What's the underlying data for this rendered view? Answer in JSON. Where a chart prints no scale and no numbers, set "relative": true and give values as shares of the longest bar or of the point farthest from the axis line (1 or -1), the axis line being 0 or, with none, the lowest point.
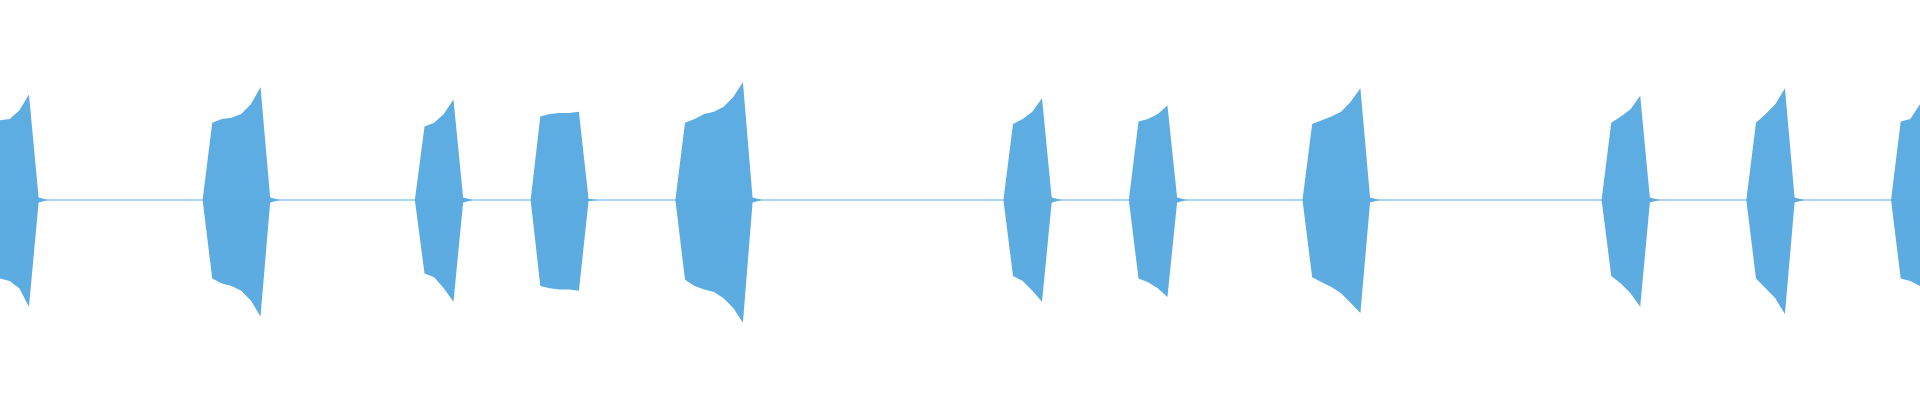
{
  "chart_data": {
    "type": "area",
    "relative": true,
    "legend": false,
    "ref_lines": [
      {
        "axis": "y",
        "value": 0,
        "color": "#5dace2"
      }
    ],
    "categories": [
      null,
      null,
      null,
      null,
      null,
      null,
      null,
      null,
      null,
      null,
      null,
      null,
      null,
      null,
      null,
      null,
      null,
      null,
      null,
      null,
      null,
      null,
      null,
      null,
      null,
      null,
      null,
      null,
      null,
      null,
      null,
      null,
      null,
      null,
      null,
      null,
      null,
      null,
      null,
      null,
      null,
      null,
      null,
      null,
      null,
      null,
      null,
      null,
      null,
      null,
      null,
      null,
      null,
      null,
      null,
      null,
      null,
      null,
      null,
      null,
      null,
      null,
      null,
      null,
      null,
      null,
      null,
      null,
      null,
      null,
      null,
      null,
      null,
      null,
      null,
      null,
      null,
      null,
      null,
      null,
      null,
      null,
      null,
      null,
      null,
      null,
      null,
      null,
      null,
      null,
      null,
      null,
      null,
      null,
      null,
      null,
      null,
      null,
      null,
      null,
      null,
      null,
      null,
      null,
      null,
      null,
      null,
      null,
      null,
      null,
      null,
      null,
      null,
      null,
      null,
      null,
      null,
      null,
      null,
      null,
      null,
      null,
      null,
      null,
      null,
      null,
      null,
      null,
      null,
      null,
      null,
      null,
      null,
      null,
      null,
      null,
      null,
      null,
      null,
      null,
      null,
      null,
      null,
      null,
      null,
      null,
      null,
      null,
      null,
      null,
      null,
      null,
      null,
      null,
      null,
      null,
      null,
      null,
      null,
      null,
      null,
      null,
      null,
      null,
      null,
      null,
      null,
      null,
      null,
      null,
      null,
      null,
      null,
      null,
      null,
      null,
      null,
      null,
      null,
      null,
      null,
      null,
      null,
      null,
      null,
      null,
      null,
      null,
      null,
      null,
      null,
      null,
      null,
      null,
      null,
      null,
      null,
      null,
      null,
      null
    ],
    "series": [
      {
        "color": "#5dace2",
        "values": [
          0.65,
          0.66,
          0.73,
          0.86,
          0.02,
          0,
          0,
          0,
          0,
          0,
          0,
          0,
          0,
          0,
          0,
          0,
          0,
          0,
          0,
          0,
          0,
          0,
          0.63,
          0.66,
          0.67,
          0.7,
          0.78,
          0.92,
          0.02,
          0,
          0,
          0,
          0,
          0,
          0,
          0,
          0,
          0,
          0,
          0,
          0,
          0,
          0,
          0,
          0.6,
          0.63,
          0.7,
          0.82,
          0.02,
          0,
          0,
          0,
          0,
          0,
          0,
          0,
          0.68,
          0.7,
          0.71,
          0.71,
          0.72,
          0.01,
          0,
          0,
          0,
          0,
          0,
          0,
          0,
          0,
          0,
          0.63,
          0.66,
          0.7,
          0.72,
          0.76,
          0.84,
          0.96,
          0.02,
          0,
          0,
          0,
          0,
          0,
          0,
          0,
          0,
          0,
          0,
          0,
          0,
          0,
          0,
          0,
          0,
          0,
          0,
          0,
          0,
          0,
          0,
          0,
          0,
          0,
          0,
          0.62,
          0.66,
          0.72,
          0.83,
          0.02,
          0,
          0,
          0,
          0,
          0,
          0,
          0,
          0,
          0.64,
          0.66,
          0.7,
          0.77,
          0.02,
          0,
          0,
          0,
          0,
          0,
          0,
          0,
          0,
          0,
          0,
          0,
          0,
          0,
          0.62,
          0.65,
          0.68,
          0.72,
          0.8,
          0.91,
          0.02,
          0,
          0,
          0,
          0,
          0,
          0,
          0,
          0,
          0,
          0,
          0,
          0,
          0,
          0,
          0,
          0,
          0,
          0,
          0,
          0,
          0,
          0,
          0,
          0,
          0.63,
          0.68,
          0.74,
          0.85,
          0.02,
          0,
          0,
          0,
          0,
          0,
          0,
          0,
          0,
          0,
          0,
          0.63,
          0.7,
          0.78,
          0.91,
          0.02,
          0,
          0,
          0,
          0,
          0,
          0,
          0,
          0,
          0,
          0,
          0.64,
          0.66,
          0.78
        ]
      },
      {
        "color": "#5cabe1",
        "values": [
          -0.64,
          -0.66,
          -0.72,
          -0.87,
          -0.02,
          0,
          0,
          0,
          0,
          0,
          0,
          0,
          0,
          0,
          0,
          0,
          0,
          0,
          0,
          0,
          0,
          0,
          -0.64,
          -0.68,
          -0.7,
          -0.74,
          -0.82,
          -0.95,
          -0.02,
          0,
          0,
          0,
          0,
          0,
          0,
          0,
          0,
          0,
          0,
          0,
          0,
          0,
          0,
          0,
          -0.6,
          -0.63,
          -0.72,
          -0.83,
          -0.02,
          0,
          0,
          0,
          0,
          0,
          0,
          0,
          -0.7,
          -0.72,
          -0.73,
          -0.73,
          -0.74,
          -0.01,
          0,
          0,
          0,
          0,
          0,
          0,
          0,
          0,
          0,
          -0.65,
          -0.7,
          -0.73,
          -0.75,
          -0.8,
          -0.88,
          -1.0,
          -0.02,
          0,
          0,
          0,
          0,
          0,
          0,
          0,
          0,
          0,
          0,
          0,
          0,
          0,
          0,
          0,
          0,
          0,
          0,
          0,
          0,
          0,
          0,
          0,
          0,
          0,
          0,
          -0.62,
          -0.66,
          -0.74,
          -0.83,
          -0.02,
          0,
          0,
          0,
          0,
          0,
          0,
          0,
          0,
          -0.64,
          -0.67,
          -0.72,
          -0.79,
          -0.02,
          0,
          0,
          0,
          0,
          0,
          0,
          0,
          0,
          0,
          0,
          0,
          0,
          0,
          -0.63,
          -0.67,
          -0.71,
          -0.76,
          -0.84,
          -0.92,
          -0.02,
          0,
          0,
          0,
          0,
          0,
          0,
          0,
          0,
          0,
          0,
          0,
          0,
          0,
          0,
          0,
          0,
          0,
          0,
          0,
          0,
          0,
          0,
          0,
          0,
          -0.62,
          -0.68,
          -0.76,
          -0.87,
          -0.02,
          0,
          0,
          0,
          0,
          0,
          0,
          0,
          0,
          0,
          0,
          -0.64,
          -0.72,
          -0.8,
          -0.93,
          -0.02,
          0,
          0,
          0,
          0,
          0,
          0,
          0,
          0,
          0,
          0,
          -0.64,
          -0.66,
          -0.7
        ]
      }
    ]
  }
}
